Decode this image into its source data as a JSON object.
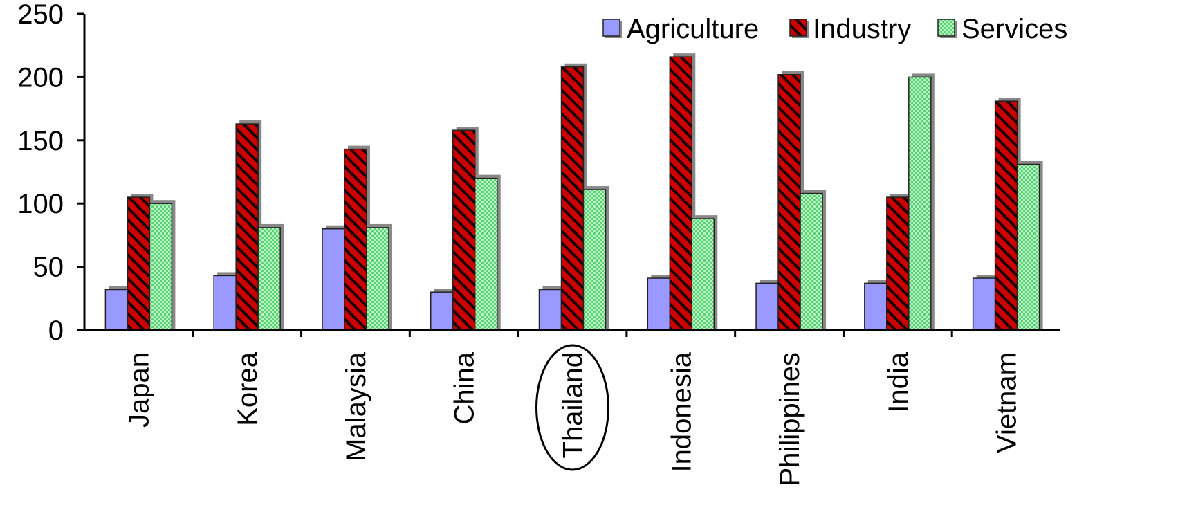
{
  "chart_data": {
    "type": "bar",
    "title": "",
    "xlabel": "",
    "ylabel": "",
    "ylim": [
      0,
      250
    ],
    "yticks": [
      0,
      50,
      100,
      150,
      200,
      250
    ],
    "categories": [
      "Japan",
      "Korea",
      "Malaysia",
      "China",
      "Thailand",
      "Indonesia",
      "Philippines",
      "India",
      "Vietnam"
    ],
    "series": [
      {
        "name": "Agriculture",
        "color": "#9999ff",
        "pattern": "solid",
        "values": [
          32,
          43,
          80,
          30,
          32,
          41,
          37,
          37,
          41
        ]
      },
      {
        "name": "Industry",
        "color": "#cc0000",
        "pattern": "diagonal-hatch",
        "values": [
          105,
          163,
          143,
          158,
          208,
          216,
          202,
          105,
          181
        ]
      },
      {
        "name": "Services",
        "color": "#88ee99",
        "pattern": "dotted",
        "values": [
          100,
          81,
          81,
          120,
          111,
          88,
          108,
          200,
          131
        ]
      }
    ],
    "highlighted_category": "Thailand",
    "legend_position": "top-right",
    "grid": false
  }
}
